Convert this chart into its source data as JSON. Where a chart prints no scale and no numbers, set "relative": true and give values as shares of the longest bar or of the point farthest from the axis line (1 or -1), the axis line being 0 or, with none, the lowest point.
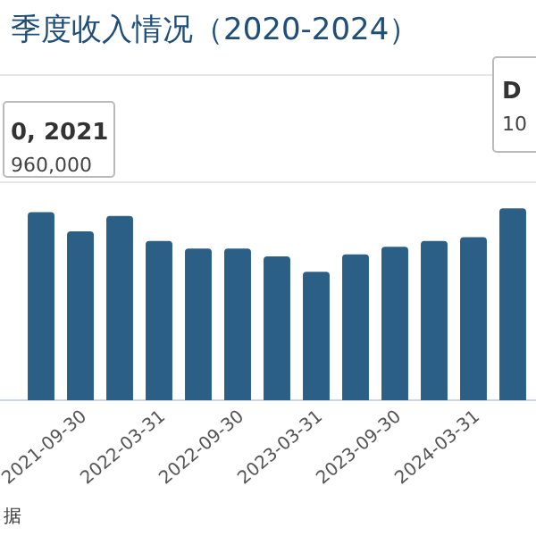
{
  "chart_data": {
    "type": "bar",
    "title": "季度收入情况（2020-2024）",
    "relative": true,
    "color": "#2b5f85",
    "categories": [
      null,
      "2021-09-30",
      null,
      "2022-03-31",
      null,
      "2022-09-30",
      null,
      "2023-03-31",
      null,
      "2023-09-30",
      null,
      "2024-03-31",
      null
    ],
    "values": [
      0.98,
      0.88,
      0.96,
      0.83,
      0.79,
      0.79,
      0.75,
      0.67,
      0.76,
      0.8,
      0.83,
      0.85,
      1
    ],
    "annotations": [
      "0, 2021",
      "960,000",
      "D",
      "10",
      "据"
    ]
  }
}
